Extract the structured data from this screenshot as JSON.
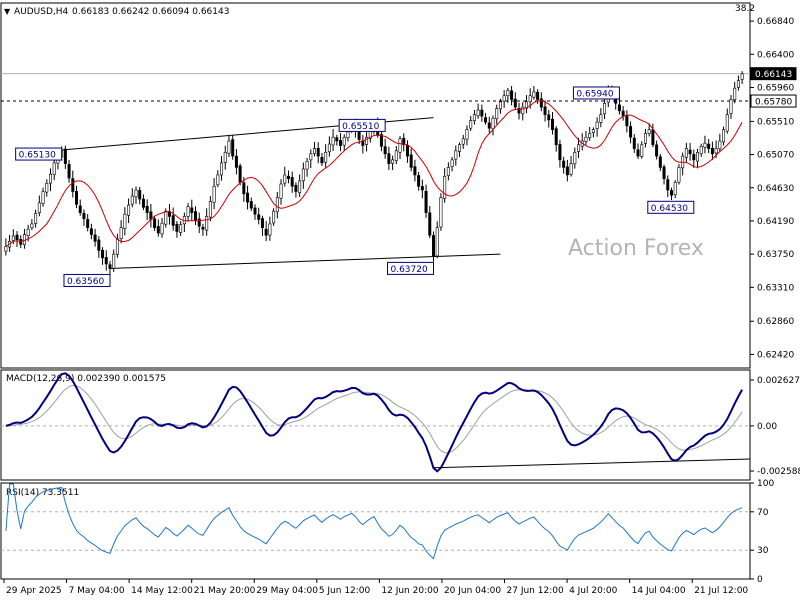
{
  "header": {
    "symbol": "AUDUSD,H4",
    "ohlc": "0.66183 0.66242 0.66094 0.66143",
    "corner_value": "38.2"
  },
  "watermark": "Action Forex",
  "colors": {
    "candle": "#000000",
    "ma": "#cc0000",
    "macd": "#00007f",
    "signal": "#a0a0a0",
    "rsi": "#1e78c8",
    "label_border": "#00007f",
    "grid_dash": "#000000"
  },
  "chart_data": [
    {
      "type": "candlestick",
      "name": "AUDUSD,H4",
      "ylim": [
        0.6224,
        0.6708
      ],
      "y_ticks": [
        "0.66840",
        "0.66400",
        "0.65960",
        "0.65510",
        "0.65070",
        "0.64630",
        "0.64190",
        "0.63750",
        "0.63310",
        "0.62860",
        "0.62420"
      ],
      "current_price": "0.66143",
      "horizontal_level": "0.65780",
      "x_tick_labels": [
        "29 Apr 2025",
        "7 May 04:00",
        "14 May 12:00",
        "21 May 20:00",
        "29 May 04:00",
        "5 Jun 12:00",
        "12 Jun 20:00",
        "20 Jun 04:00",
        "27 Jun 12:00",
        "4 Jul 20:00",
        "14 Jul 04:00",
        "21 Jul 12:00"
      ],
      "annotations": [
        "0.65130",
        "0.63560",
        "0.65510",
        "0.63720",
        "0.65940",
        "0.64530"
      ],
      "close_series": [
        0.6385,
        0.6392,
        0.6399,
        0.6394,
        0.6388,
        0.6401,
        0.6408,
        0.6415,
        0.6429,
        0.6443,
        0.6458,
        0.6469,
        0.6481,
        0.6496,
        0.6505,
        0.6513,
        0.6495,
        0.6476,
        0.6458,
        0.6441,
        0.643,
        0.6422,
        0.641,
        0.6401,
        0.6392,
        0.638,
        0.637,
        0.6362,
        0.6356,
        0.6375,
        0.6395,
        0.641,
        0.6428,
        0.644,
        0.6452,
        0.646,
        0.6448,
        0.6437,
        0.643,
        0.6421,
        0.641,
        0.6403,
        0.6416,
        0.6432,
        0.6425,
        0.6413,
        0.6405,
        0.6414,
        0.6425,
        0.6438,
        0.643,
        0.642,
        0.6412,
        0.6408,
        0.6425,
        0.6445,
        0.6465,
        0.648,
        0.6496,
        0.651,
        0.6525,
        0.6505,
        0.649,
        0.647,
        0.6455,
        0.6444,
        0.6436,
        0.6428,
        0.6421,
        0.641,
        0.64,
        0.6415,
        0.6432,
        0.645,
        0.6468,
        0.648,
        0.6475,
        0.6465,
        0.6458,
        0.6472,
        0.6488,
        0.6498,
        0.6508,
        0.6515,
        0.6505,
        0.6496,
        0.651,
        0.6521,
        0.653,
        0.6525,
        0.6519,
        0.653,
        0.6537,
        0.6545,
        0.6538,
        0.6527,
        0.6519,
        0.653,
        0.654,
        0.6548,
        0.6533,
        0.6518,
        0.6508,
        0.6495,
        0.65,
        0.6512,
        0.6528,
        0.652,
        0.6505,
        0.649,
        0.648,
        0.6465,
        0.646,
        0.643,
        0.64,
        0.6372,
        0.641,
        0.645,
        0.6478,
        0.649,
        0.65,
        0.6512,
        0.652,
        0.6528,
        0.654,
        0.6552,
        0.656,
        0.6566,
        0.6558,
        0.655,
        0.6542,
        0.6555,
        0.6568,
        0.6577,
        0.6585,
        0.6592,
        0.658,
        0.657,
        0.6562,
        0.657,
        0.6577,
        0.6585,
        0.659,
        0.658,
        0.657,
        0.656,
        0.6553,
        0.654,
        0.652,
        0.65,
        0.649,
        0.648,
        0.6495,
        0.651,
        0.652,
        0.6525,
        0.653,
        0.6535,
        0.654,
        0.655,
        0.656,
        0.6575,
        0.6594,
        0.6585,
        0.6575,
        0.6565,
        0.6558,
        0.6545,
        0.653,
        0.6515,
        0.6505,
        0.652,
        0.6535,
        0.654,
        0.652,
        0.6505,
        0.649,
        0.6475,
        0.646,
        0.6453,
        0.647,
        0.649,
        0.6505,
        0.6515,
        0.6508,
        0.65,
        0.651,
        0.6518,
        0.6522,
        0.6515,
        0.6508,
        0.6515,
        0.6525,
        0.654,
        0.656,
        0.658,
        0.6595,
        0.6605,
        0.6614
      ]
    },
    {
      "type": "line",
      "name": "MACD(12,26,9) 0.002390 0.001575",
      "ylim": [
        -0.0031,
        0.0032
      ],
      "y_ticks": [
        "0.002627",
        "0.00",
        "-0.002588"
      ],
      "series_names": [
        "MACD",
        "Signal"
      ]
    },
    {
      "type": "line",
      "name": "RSI(14) 73.3511",
      "ylim": [
        0,
        100
      ],
      "y_ticks": [
        "100",
        "70",
        "30",
        "0"
      ]
    }
  ]
}
